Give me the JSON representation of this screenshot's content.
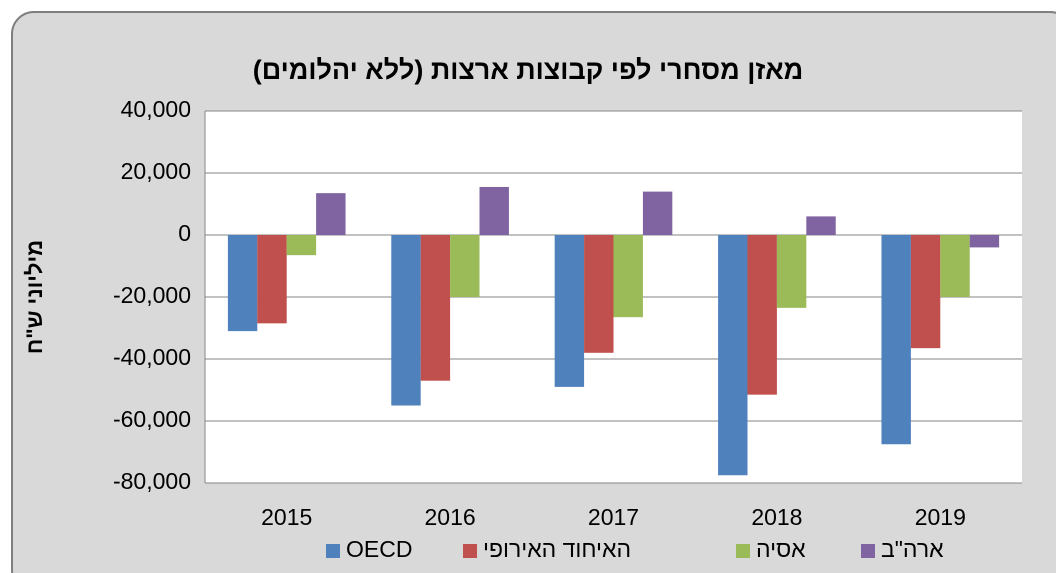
{
  "chart_data": {
    "type": "bar",
    "title": "מאזן מסחרי לפי קבוצות ארצות (ללא יהלומים)",
    "y_label": "מיליוני ש\"ח",
    "categories": [
      "2015",
      "2016",
      "2017",
      "2018",
      "2019"
    ],
    "series": [
      {
        "name": "OECD",
        "color": "#4f81bd",
        "values": [
          -31000,
          -55000,
          -49000,
          -77500,
          -67500
        ]
      },
      {
        "name": "האיחוד האירופי",
        "color": "#c0504d",
        "values": [
          -28500,
          -47000,
          -38000,
          -51500,
          -36500
        ]
      },
      {
        "name": "אסיה",
        "color": "#9bbb59",
        "values": [
          -6500,
          -20000,
          -26500,
          -23500,
          -20000
        ]
      },
      {
        "name": "ארה\"ב",
        "color": "#8064a2",
        "values": [
          13500,
          15500,
          14000,
          6000,
          -4000
        ]
      }
    ],
    "ylim": [
      -80000,
      40000
    ],
    "yticks": [
      {
        "value": -80000,
        "label": "-80,000"
      },
      {
        "value": -60000,
        "label": "-60,000"
      },
      {
        "value": -40000,
        "label": "-40,000"
      },
      {
        "value": -20000,
        "label": "-20,000"
      },
      0,
      {
        "value": 20000,
        "label": "20,000"
      },
      {
        "value": 40000,
        "label": "40,000"
      }
    ],
    "grid": true,
    "legend": "bottom"
  }
}
